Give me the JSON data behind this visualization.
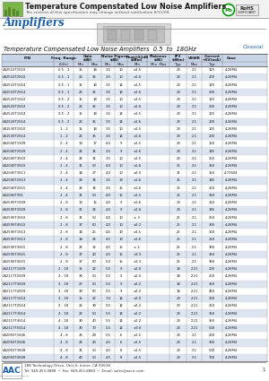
{
  "title": "Temperature Compenstated Low Noise Amplifiers",
  "subtitle": "The content of this specification may change without notification 8/31/09",
  "section_title": "Amplifiers",
  "table_subtitle": "Temperature Compensated Low Noise Amplifiers  0.5  to  18GHz",
  "coaxial_label": "Coaxial",
  "bg_color": "#ffffff",
  "header_bg": "#c8d4e8",
  "alt_row_bg": "#dde5f0",
  "row_bg": "#ffffff",
  "rows": [
    [
      "LA2510T1S10",
      "0.5 - 1",
      "15",
      "18",
      "3.5",
      "10",
      "±1.5",
      "23",
      "2.1",
      "125",
      "4-26M4"
    ],
    [
      "LA2510T2S10",
      "0.5 - 1",
      "26",
      "35",
      "3.5",
      "10",
      "±1.6",
      "23",
      "2.1",
      "200",
      "4-26M4"
    ],
    [
      "LA2510T1S14",
      "0.5 - 1",
      "15",
      "18",
      "3.5",
      "14",
      "±1.5",
      "23",
      "2.1",
      "125",
      "4-26M4"
    ],
    [
      "LA2510T2S14",
      "0.5 - 1",
      "26",
      "35",
      "3.5",
      "14",
      "±1.6",
      "23",
      "2.1",
      "200",
      "4-26M4"
    ],
    [
      "LA2520T1S10",
      "0.5 - 2",
      "15",
      "18",
      "3.5",
      "10",
      "±1.5",
      "23",
      "2.1",
      "125",
      "4-26M4"
    ],
    [
      "LA2520T2S10",
      "0.5 - 2",
      "26",
      "35",
      "3.5",
      "10",
      "±1.6",
      "23",
      "2.1",
      "200",
      "4-26M4"
    ],
    [
      "LA2520T1S14",
      "0.5 - 2",
      "15",
      "18",
      "3.5",
      "14",
      "±1.5",
      "23",
      "2.1",
      "125",
      "4-26M4"
    ],
    [
      "LA2520T2S14",
      "0.5 - 2",
      "26",
      "35",
      "3.5",
      "14",
      "±1.6",
      "23",
      "2.1",
      "200",
      "4-26M4"
    ],
    [
      "LA1530T1S10",
      "1 - 2",
      "15",
      "18",
      "3.5",
      "10",
      "±1.5",
      "23",
      "2.1",
      "125",
      "4-26M4"
    ],
    [
      "LA1530T2S14",
      "1 - 2",
      "26",
      "35",
      "3.5",
      "14",
      "±1.6",
      "23",
      "2.1",
      "200",
      "4-26M4"
    ],
    [
      "LA2040T1S09",
      "2 - 4",
      "13",
      "17",
      "4.0",
      "9",
      "±1.5",
      "23",
      "2.1",
      "150",
      "4-26M4"
    ],
    [
      "LA2040T2S09",
      "2 - 4",
      "24",
      "34",
      "3.5",
      "9",
      "±1.6",
      "23",
      "2.1",
      "185",
      "4-26M4"
    ],
    [
      "LA2040T3S10",
      "2 - 4",
      "24",
      "31",
      "3.5",
      "10",
      "±1.5",
      "23",
      "2.1",
      "250",
      "4-26M4"
    ],
    [
      "LA2040T3S10",
      "2 - 4",
      "31",
      "50",
      "4.0",
      "10",
      "±1.6",
      "25",
      "2.1",
      "350",
      "4-26M4"
    ],
    [
      "LA2040T3S11",
      "2 - 4",
      "18",
      "27",
      "4.0",
      "10",
      "±2.0",
      "31",
      "2.1",
      "150",
      "4-72S04"
    ],
    [
      "LA2040T2S13",
      "2 - 4",
      "24",
      "34",
      "3.5",
      "13",
      "±1.6",
      "25",
      "2.1",
      "185",
      "4-26M4"
    ],
    [
      "LA2040T2S15",
      "2 - 4",
      "24",
      "34",
      "3.5",
      "15",
      "±1.6",
      "25",
      "2.1",
      "250",
      "4-26M4"
    ],
    [
      "LA2040T3S1",
      "2 - 4",
      "31",
      "50",
      "4.0",
      "15",
      "±1.5",
      "25",
      "2.1",
      "350",
      "4-26M4"
    ],
    [
      "LA2590T1S09",
      "2 - 8",
      "13",
      "12",
      "4.0",
      "9",
      "±1.6",
      "23",
      "2.1",
      "150",
      "4-26M4"
    ],
    [
      "LA2590T2S09",
      "2 - 8",
      "21",
      "24",
      "4.0",
      "9",
      "±1.6",
      "23",
      "2.1",
      "185",
      "4-26M4"
    ],
    [
      "LA2590T3S10",
      "2 - 8",
      "31",
      "50",
      "4.0",
      "10",
      "± 3",
      "25",
      "2.1",
      "250",
      "4-26M4"
    ],
    [
      "LA2590T4S10",
      "2 - 8",
      "37",
      "60",
      "4.0",
      "10",
      "±2.2",
      "25",
      "2.1",
      "300",
      "4-26M4"
    ],
    [
      "LA2590T1S13",
      "2 - 8",
      "18",
      "25",
      "4.5",
      "13",
      "±1.5",
      "25",
      "2.1",
      "150",
      "4-26M4"
    ],
    [
      "LA2590T2S13",
      "2 - 8",
      "18",
      "24",
      "4.5",
      "13",
      "±1.6",
      "25",
      "2.1",
      "250",
      "4-26M4"
    ],
    [
      "LA2590T3S15",
      "2 - 8",
      "24",
      "32",
      "4.5",
      "15",
      "± 2",
      "25",
      "2.1",
      "300",
      "4-26M4"
    ],
    [
      "LA2590T3S15",
      "2 - 8",
      "37",
      "40",
      "4.5",
      "15",
      "±3.3",
      "25",
      "2.1",
      "350",
      "4-26M4"
    ],
    [
      "LA2590T4S15",
      "2 - 8",
      "37",
      "60",
      "5.0",
      "15",
      "±3.3",
      "25",
      "2.1",
      "300",
      "4-26M4"
    ],
    [
      "LA2117T1S09",
      "2 - 18",
      "15",
      "22",
      "5.5",
      "9",
      "±2.0",
      "18",
      "2.21",
      "200",
      "4-26M4"
    ],
    [
      "LA2117T2S09",
      "2 - 18",
      "30",
      "50",
      "5.5",
      "9",
      "±2.0",
      "18",
      "2.21",
      "250",
      "4-26M4"
    ],
    [
      "LA2117T3S09",
      "2 - 18",
      "27",
      "50",
      "5.5",
      "9",
      "±2.2",
      "18",
      "2.21",
      "350",
      "4-26M4"
    ],
    [
      "LA2117T4S09",
      "2 - 18",
      "30",
      "60",
      "5.5",
      "9",
      "±2.2",
      "18",
      "2.21",
      "450",
      "4-26M4"
    ],
    [
      "LA2117T1S14",
      "2 - 18",
      "15",
      "22",
      "7.0",
      "14",
      "±2.0",
      "23",
      "2.21",
      "200",
      "4-26M4"
    ],
    [
      "LA2117T2S14",
      "2 - 18",
      "22",
      "30",
      "5.5",
      "14",
      "±2.2",
      "23",
      "2.21",
      "250",
      "4-26M4"
    ],
    [
      "LA2117T3S14",
      "2 - 18",
      "22",
      "50",
      "5.5",
      "14",
      "±2.2",
      "23",
      "2.21",
      "350",
      "4-26M4"
    ],
    [
      "LA2117T4S14",
      "4 - 18",
      "30",
      "40",
      "5.5",
      "14",
      "±2.2",
      "23",
      "2.21",
      "350",
      "4-26M4"
    ],
    [
      "LA2117T5S14",
      "4 - 18",
      "30",
      "70",
      "5.5",
      "14",
      "±3.0",
      "23",
      "2.21",
      "500",
      "4-26M4"
    ],
    [
      "LA2050T1S06",
      "4 - 8",
      "24",
      "29",
      "5.5",
      "6",
      "±1.5",
      "23",
      "2.1",
      "200",
      "4-26M4"
    ],
    [
      "LA2050T2S06",
      "4 - 8",
      "24",
      "40",
      "4.5",
      "6",
      "±1.5",
      "23",
      "2.1",
      "300",
      "4-26M4"
    ],
    [
      "LA2050T3S08",
      "4 - 8",
      "31",
      "50",
      "4.5",
      "8",
      "±1.5",
      "23",
      "2.1",
      "500",
      "4-26M4"
    ],
    [
      "LA2050T4S08",
      "4 - 8",
      "40",
      "50",
      "4.5",
      "8",
      "±1.5",
      "23",
      "2.1",
      "700",
      "4-26M4"
    ]
  ],
  "footer_address": "188 Technology Drive, Unit H, Irvine, CA 92618",
  "footer_tel": "Tel: 949-453-9888",
  "footer_fax": "Fax: 949-453-8883",
  "footer_email": "Email: sales@aacic.com"
}
